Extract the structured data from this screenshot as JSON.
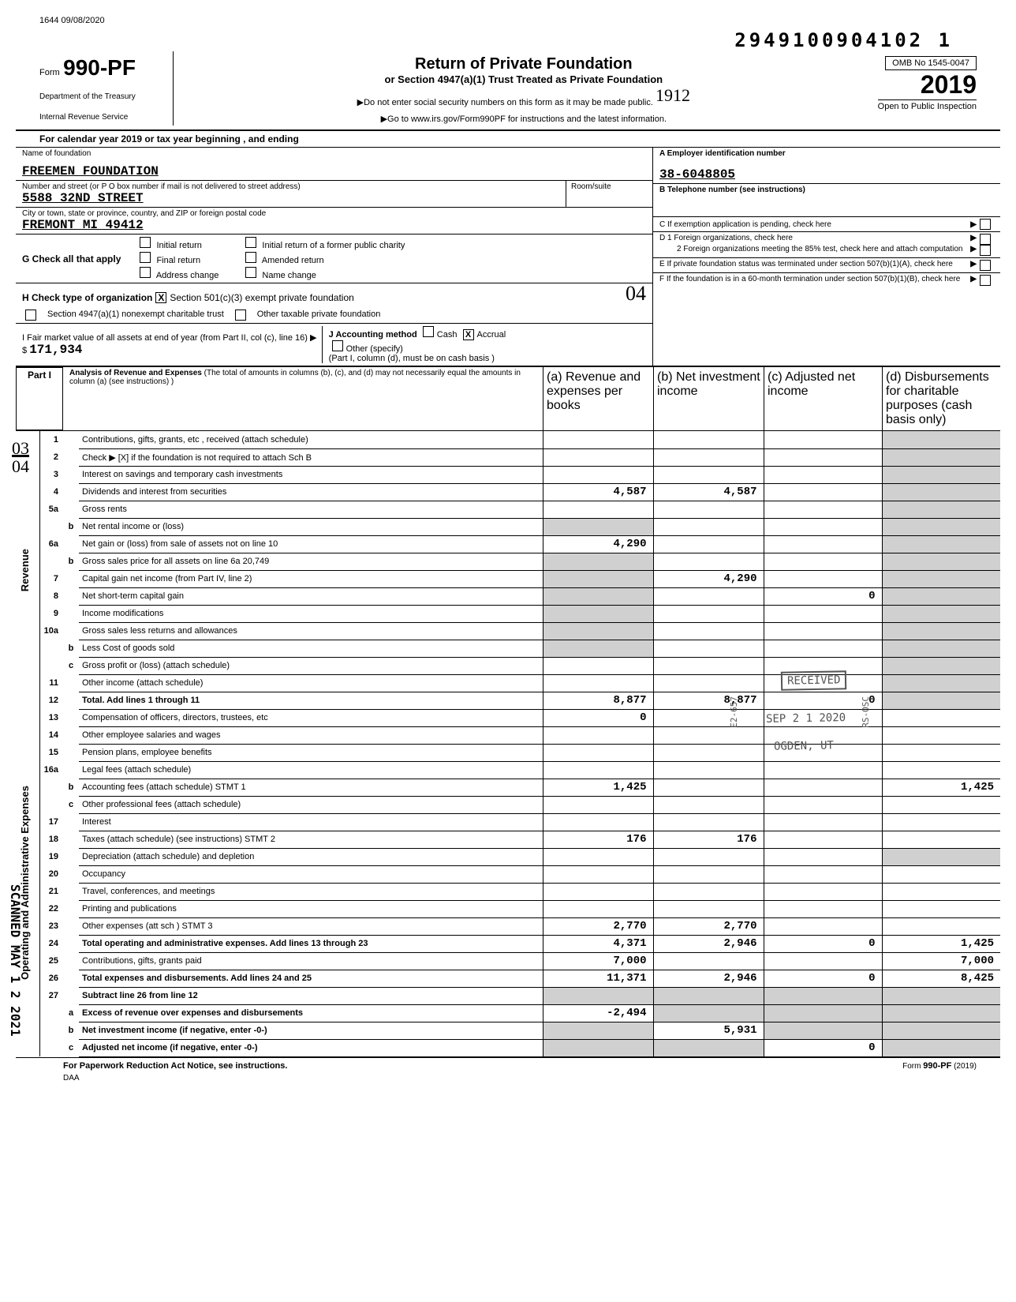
{
  "top_stamp": "1644 09/08/2020",
  "barcode_num": "2949100904102 1",
  "form": {
    "prefix": "Form",
    "number": "990-PF",
    "dept1": "Department of the Treasury",
    "dept2": "Internal Revenue Service"
  },
  "title": {
    "main": "Return of Private Foundation",
    "sub": "or Section 4947(a)(1) Trust Treated as Private Foundation",
    "note1": "▶Do not enter social security numbers on this form as it may be made public.",
    "note2": "▶Go to www.irs.gov/Form990PF for instructions and the latest information."
  },
  "year_box": {
    "omb": "OMB No 1545-0047",
    "year": "2019",
    "handwritten": "1912",
    "inspection": "Open to Public Inspection"
  },
  "cal_year_line": "For calendar year 2019 or tax year beginning                                      , and ending",
  "foundation": {
    "name_label": "Name of foundation",
    "name": "FREEMEN FOUNDATION",
    "addr_label": "Number and street (or P O  box number if mail is not delivered to street address)",
    "addr": "5588 32ND STREET",
    "city_label": "City or town, state or province, country, and ZIP or foreign postal code",
    "city": "FREMONT                           MI  49412",
    "room_label": "Room/suite"
  },
  "right_info": {
    "a_label": "A    Employer identification number",
    "a_val": "38-6048805",
    "b_label": "B    Telephone number (see instructions)",
    "c_label": "C    If exemption application is pending, check here",
    "d1": "D   1   Foreign organizations, check here",
    "d2": "2   Foreign organizations meeting the 85% test, check here and attach computation",
    "e": "E    If private foundation status was terminated under section 507(b)(1)(A), check here",
    "f": "F    If the foundation is in a 60-month termination under section 507(b)(1)(B), check here"
  },
  "g_line": {
    "label": "G  Check all that apply",
    "opts": [
      "Initial return",
      "Final return",
      "Address change",
      "Initial return of a former public charity",
      "Amended return",
      "Name change"
    ]
  },
  "h_line": {
    "label": "H  Check type of organization",
    "opt1": "Section 501(c)(3) exempt private foundation",
    "opt2": "Section 4947(a)(1) nonexempt charitable trust",
    "opt3": "Other taxable private foundation",
    "hand": "04"
  },
  "i_line": {
    "label": "I   Fair market value of all assets at end of year (from Part II, col (c), line 16) ▶  $",
    "val": "171,934",
    "j_label": "J   Accounting method",
    "cash": "Cash",
    "accrual": "Accrual",
    "other": "Other (specify)",
    "basis_note": "(Part I, column (d), must be on cash basis )"
  },
  "part1": {
    "label": "Part I",
    "title": "Analysis of Revenue and Expenses",
    "note": "(The total of amounts in columns (b), (c), and (d) may not necessarily equal the amounts in column (a) (see instructions) )",
    "col_a": "(a) Revenue and expenses per books",
    "col_b": "(b) Net investment income",
    "col_c": "(c) Adjusted net income",
    "col_d": "(d) Disbursements for charitable purposes (cash basis only)"
  },
  "margin_03": "03",
  "margin_04": "04",
  "side_revenue": "Revenue",
  "side_expenses": "Operating and Administrative Expenses",
  "vert_scan": "SCANNED MAY 1 2 2021",
  "rows": [
    {
      "n": "1",
      "s": "",
      "d": "Contributions, gifts, grants, etc , received (attach schedule)"
    },
    {
      "n": "2",
      "s": "",
      "d": "Check ▶ [X] if the foundation is not required to attach Sch B"
    },
    {
      "n": "3",
      "s": "",
      "d": "Interest on savings and temporary cash investments"
    },
    {
      "n": "4",
      "s": "",
      "d": "Dividends and interest from securities",
      "a": "4,587",
      "b": "4,587"
    },
    {
      "n": "5a",
      "s": "",
      "d": "Gross rents"
    },
    {
      "n": "",
      "s": "b",
      "d": "Net rental income or (loss)"
    },
    {
      "n": "6a",
      "s": "",
      "d": "Net gain or (loss) from sale of assets not on line 10",
      "a": "4,290"
    },
    {
      "n": "",
      "s": "b",
      "d": "Gross sales price for all assets on line 6a                    20,749"
    },
    {
      "n": "7",
      "s": "",
      "d": "Capital gain net income (from Part IV, line 2)",
      "b": "4,290"
    },
    {
      "n": "8",
      "s": "",
      "d": "Net short-term capital gain",
      "c": "0"
    },
    {
      "n": "9",
      "s": "",
      "d": "Income modifications"
    },
    {
      "n": "10a",
      "s": "",
      "d": "Gross sales less returns and allowances"
    },
    {
      "n": "",
      "s": "b",
      "d": "Less Cost of goods sold"
    },
    {
      "n": "",
      "s": "c",
      "d": "Gross profit or (loss) (attach schedule)"
    },
    {
      "n": "11",
      "s": "",
      "d": "Other income (attach schedule)"
    },
    {
      "n": "12",
      "s": "",
      "d": "Total. Add lines 1 through 11",
      "bold": true,
      "a": "8,877",
      "b": "8,877",
      "c": "0"
    },
    {
      "n": "13",
      "s": "",
      "d": "Compensation of officers, directors, trustees, etc",
      "a": "0"
    },
    {
      "n": "14",
      "s": "",
      "d": "Other employee salaries and wages"
    },
    {
      "n": "15",
      "s": "",
      "d": "Pension plans, employee benefits"
    },
    {
      "n": "16a",
      "s": "",
      "d": "Legal fees (attach schedule)"
    },
    {
      "n": "",
      "s": "b",
      "d": "Accounting fees (attach schedule)        STMT 1",
      "a": "1,425",
      "dcol": "1,425"
    },
    {
      "n": "",
      "s": "c",
      "d": "Other professional fees (attach schedule)"
    },
    {
      "n": "17",
      "s": "",
      "d": "Interest"
    },
    {
      "n": "18",
      "s": "",
      "d": "Taxes (attach schedule) (see instructions)    STMT 2",
      "a": "176",
      "b": "176"
    },
    {
      "n": "19",
      "s": "",
      "d": "Depreciation (attach schedule) and depletion"
    },
    {
      "n": "20",
      "s": "",
      "d": "Occupancy"
    },
    {
      "n": "21",
      "s": "",
      "d": "Travel, conferences, and meetings"
    },
    {
      "n": "22",
      "s": "",
      "d": "Printing and publications"
    },
    {
      "n": "23",
      "s": "",
      "d": "Other expenses (att sch )                     STMT 3",
      "a": "2,770",
      "b": "2,770"
    },
    {
      "n": "24",
      "s": "",
      "d": "Total operating and administrative expenses. Add lines 13 through 23",
      "bold": true,
      "a": "4,371",
      "b": "2,946",
      "c": "0",
      "dcol": "1,425"
    },
    {
      "n": "25",
      "s": "",
      "d": "Contributions, gifts, grants paid",
      "a": "7,000",
      "dcol": "7,000"
    },
    {
      "n": "26",
      "s": "",
      "d": "Total expenses and disbursements. Add lines 24 and 25",
      "bold": true,
      "a": "11,371",
      "b": "2,946",
      "c": "0",
      "dcol": "8,425"
    },
    {
      "n": "27",
      "s": "",
      "d": "Subtract line 26 from line 12",
      "bold": true
    },
    {
      "n": "",
      "s": "a",
      "d": "Excess of revenue over expenses and disbursements",
      "bold": true,
      "a": "-2,494"
    },
    {
      "n": "",
      "s": "b",
      "d": "Net investment income (if negative, enter -0-)",
      "bold": true,
      "b": "5,931"
    },
    {
      "n": "",
      "s": "c",
      "d": "Adjusted net income (if negative, enter -0-)",
      "bold": true,
      "c": "0"
    }
  ],
  "stamps": {
    "received": "RECEIVED",
    "date": "SEP 2 1 2020",
    "ogden": "OGDEN, UT",
    "side1": "E2-657",
    "side2": "RS-OSC"
  },
  "footer": {
    "left": "For Paperwork Reduction Act Notice, see instructions.",
    "daa": "DAA",
    "right": "Form 990-PF (2019)"
  }
}
